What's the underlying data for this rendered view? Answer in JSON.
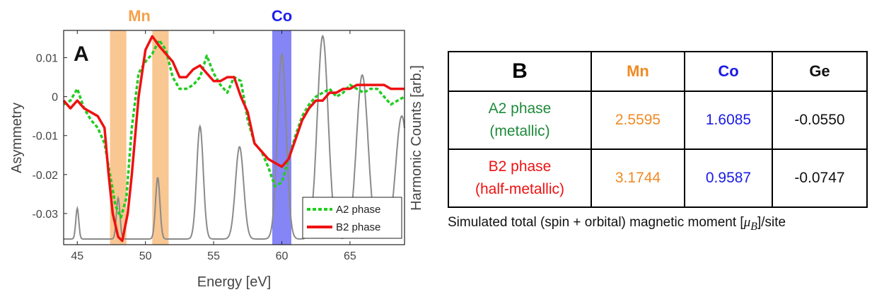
{
  "chart_data": {
    "type": "line",
    "panel_label": "A",
    "xlabel": "Energy [eV]",
    "ylabel": "Asymmetry",
    "y2label": "Harmonic Counts [arb.]",
    "xlim": [
      44,
      69
    ],
    "ylim": [
      -0.038,
      0.017
    ],
    "xticks": [
      45,
      50,
      55,
      60,
      65
    ],
    "yticks": [
      0.01,
      0,
      -0.01,
      -0.02,
      -0.03
    ],
    "ytick_labels": [
      "0.01",
      "0",
      "-0.01",
      "-0.02",
      "-0.03"
    ],
    "grid": false,
    "legend": "bottom-right",
    "highlight_bands": [
      {
        "label": "Mn",
        "x_ranges": [
          [
            47.4,
            48.6
          ],
          [
            50.5,
            51.7
          ]
        ],
        "color": "#f5a14a"
      },
      {
        "label": "Co",
        "x_ranges": [
          [
            59.3,
            60.7
          ]
        ],
        "color": "#2020ee"
      }
    ],
    "series": [
      {
        "name": "A2 phase",
        "color": "#22cc22",
        "style": "dotted",
        "x": [
          44,
          44.5,
          45,
          45.5,
          46,
          46.5,
          47,
          47.5,
          47.8,
          48.2,
          48.6,
          49,
          49.5,
          50,
          50.5,
          51,
          51.5,
          52,
          52.5,
          53,
          53.5,
          54,
          54.5,
          55,
          55.5,
          56,
          56.5,
          57,
          57.5,
          58,
          58.5,
          59,
          59.5,
          60,
          60.5,
          61,
          61.5,
          62,
          62.5,
          63,
          63.5,
          64,
          64.5,
          65,
          65.5,
          66,
          66.5,
          67,
          67.5,
          68,
          68.5,
          69
        ],
        "y": [
          -0.002,
          -0.001,
          0.002,
          -0.003,
          -0.006,
          -0.008,
          -0.012,
          -0.022,
          -0.028,
          -0.031,
          -0.026,
          -0.008,
          0.006,
          0.009,
          0.011,
          0.0145,
          0.012,
          0.005,
          0.002,
          0.002,
          0.003,
          0.005,
          0.0105,
          0.006,
          0.003,
          0.001,
          0.005,
          0.004,
          -0.006,
          -0.012,
          -0.014,
          -0.018,
          -0.023,
          -0.022,
          -0.016,
          -0.01,
          -0.005,
          -0.002,
          0.0,
          0.001,
          0.002,
          0.0,
          0.001,
          0.003,
          0.002,
          0.001,
          0.002,
          0.002,
          0.0,
          -0.002,
          -0.001,
          0.0
        ]
      },
      {
        "name": "B2 phase",
        "color": "#ee1111",
        "style": "solid",
        "x": [
          44,
          44.5,
          45,
          45.5,
          46,
          46.5,
          47,
          47.3,
          47.6,
          48,
          48.3,
          48.7,
          49,
          49.5,
          50,
          50.5,
          51,
          51.5,
          52,
          52.5,
          53,
          53.5,
          54,
          54.5,
          55,
          55.5,
          56,
          56.5,
          57,
          57.5,
          58,
          58.5,
          59,
          59.5,
          60,
          60.5,
          61,
          61.5,
          62,
          62.5,
          63,
          63.5,
          64,
          64.5,
          65,
          65.5,
          66,
          66.5,
          67,
          67.5,
          68,
          68.5,
          69
        ],
        "y": [
          -0.001,
          -0.003,
          -0.001,
          -0.003,
          -0.004,
          -0.005,
          -0.008,
          -0.02,
          -0.03,
          -0.036,
          -0.037,
          -0.03,
          -0.02,
          0.0,
          0.012,
          0.0155,
          0.013,
          0.011,
          0.009,
          0.005,
          0.005,
          0.007,
          0.008,
          0.006,
          0.004,
          0.004,
          0.005,
          0.005,
          0.0,
          -0.004,
          -0.012,
          -0.014,
          -0.016,
          -0.017,
          -0.018,
          -0.016,
          -0.011,
          -0.006,
          -0.003,
          -0.001,
          -0.001,
          0.001,
          0.001,
          0.002,
          0.002,
          0.003,
          0.003,
          0.003,
          0.003,
          0.003,
          0.002,
          0.002,
          0.002
        ]
      },
      {
        "name": "Harmonic counts",
        "color": "#8a8a8a",
        "style": "solid",
        "axis": "right",
        "peaks": [
          {
            "x": 45.0,
            "height": 0.15,
            "width": 0.11
          },
          {
            "x": 48.0,
            "height": 0.2,
            "width": 0.13
          },
          {
            "x": 50.9,
            "height": 0.3,
            "width": 0.16
          },
          {
            "x": 54.0,
            "height": 0.55,
            "width": 0.24
          },
          {
            "x": 56.9,
            "height": 0.45,
            "width": 0.3
          },
          {
            "x": 60.0,
            "height": 0.9,
            "width": 0.32
          },
          {
            "x": 63.0,
            "height": 0.99,
            "width": 0.4
          },
          {
            "x": 65.9,
            "height": 0.8,
            "width": 0.42
          },
          {
            "x": 68.8,
            "height": 0.6,
            "width": 0.44
          }
        ]
      }
    ]
  },
  "table": {
    "panel_label": "B",
    "columns": [
      "Mn",
      "Co",
      "Ge"
    ],
    "column_colors": [
      "#f08a24",
      "#1a1ae6",
      "#111111"
    ],
    "rows": [
      {
        "phase": "A2 phase",
        "type": "(metallic)",
        "color": "#1e8a3a",
        "values": [
          "2.5595",
          "1.6085",
          "-0.0550"
        ]
      },
      {
        "phase": "B2 phase",
        "type": "(half-metallic)",
        "color": "#ee1111",
        "values": [
          "3.1744",
          "0.9587",
          "-0.0747"
        ]
      }
    ],
    "caption_pre": "Simulated total (spin + orbital) magnetic moment [",
    "caption_mu": "μ",
    "caption_sub": "B",
    "caption_post": "]/site"
  }
}
